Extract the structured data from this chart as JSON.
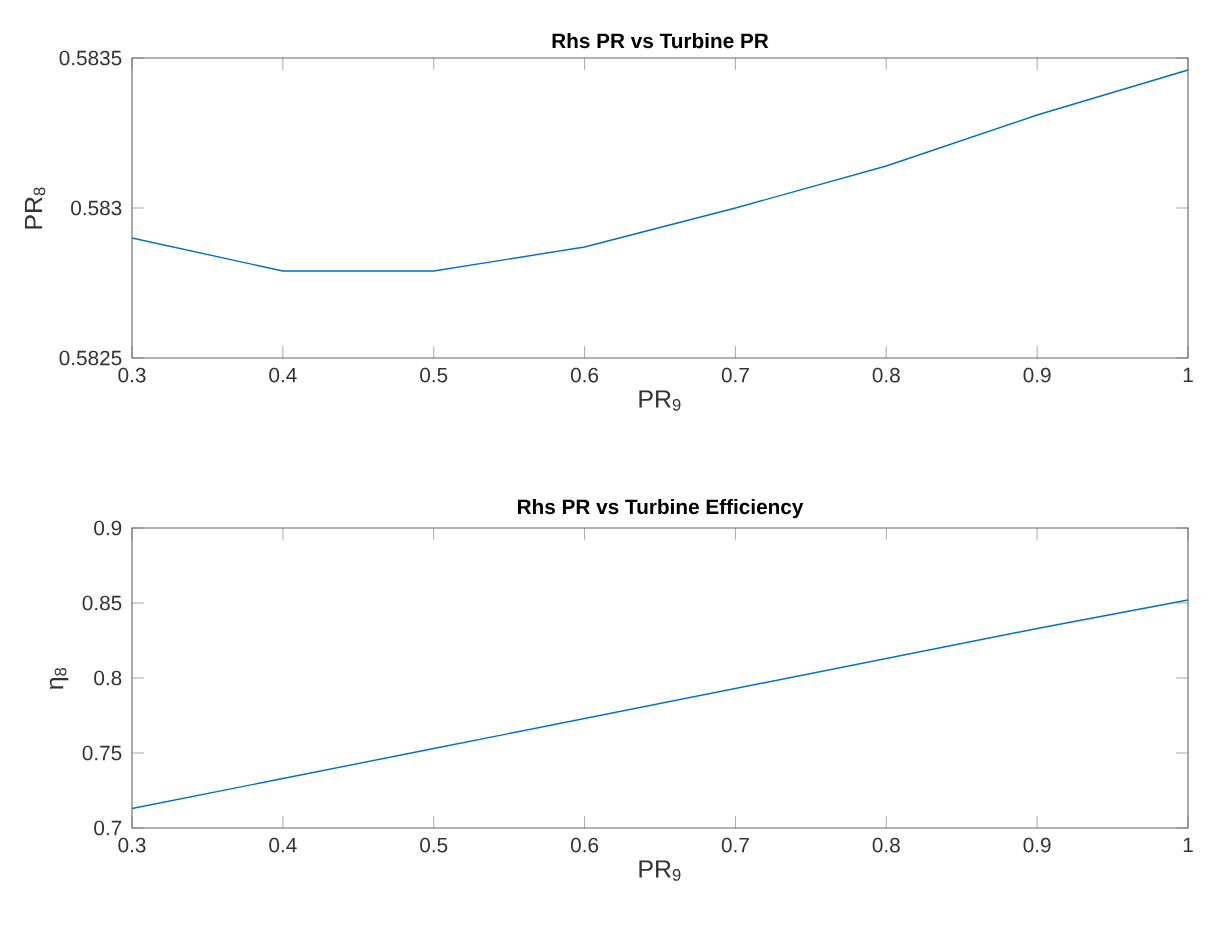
{
  "chart_data": [
    {
      "type": "line",
      "title": "Rhs PR vs Turbine PR",
      "xlabel": "PR$_{9}$",
      "ylabel": "PR$_{8}$",
      "x": [
        0.3,
        0.4,
        0.5,
        0.6,
        0.7,
        0.8,
        0.9,
        1.0
      ],
      "series": [
        {
          "color": "#0072bd",
          "values": [
            0.5829,
            0.58279,
            0.58279,
            0.58287,
            0.583,
            0.58314,
            0.58331,
            0.58346
          ]
        }
      ],
      "xlim": [
        0.3,
        1.0
      ],
      "xticks": [
        0.3,
        0.4,
        0.5,
        0.6,
        0.7,
        0.8,
        0.9,
        1
      ],
      "ylim": [
        0.5825,
        0.5835
      ],
      "yticks": [
        0.5825,
        0.583,
        0.5835
      ],
      "grid": false,
      "marker": "none",
      "line_style": "solid"
    },
    {
      "type": "line",
      "title": "Rhs PR vs Turbine Efficiency",
      "xlabel": "PR$_{9}$",
      "ylabel": "η$_{8}$",
      "x": [
        0.3,
        0.4,
        0.5,
        0.6,
        0.7,
        0.8,
        0.9,
        1.0
      ],
      "series": [
        {
          "color": "#0072bd",
          "values": [
            0.713,
            0.733,
            0.753,
            0.773,
            0.793,
            0.813,
            0.833,
            0.852
          ]
        }
      ],
      "xlim": [
        0.3,
        1.0
      ],
      "xticks": [
        0.3,
        0.4,
        0.5,
        0.6,
        0.7,
        0.8,
        0.9,
        1
      ],
      "ylim": [
        0.7,
        0.9
      ],
      "yticks": [
        0.7,
        0.75,
        0.8,
        0.85,
        0.9
      ],
      "grid": false,
      "marker": "none",
      "line_style": "solid"
    }
  ]
}
